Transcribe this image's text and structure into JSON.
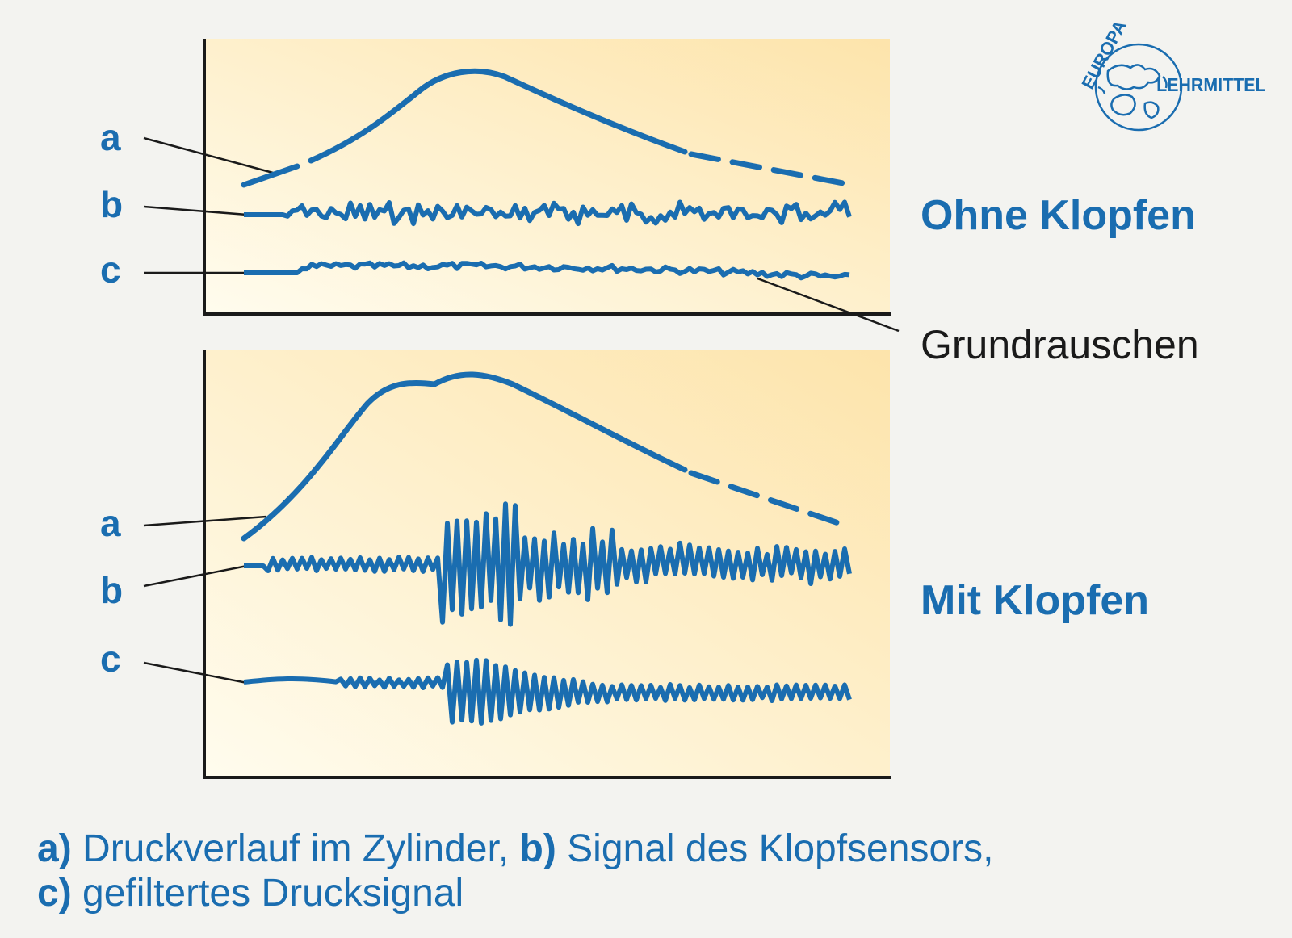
{
  "colors": {
    "accent": "#1a6db0",
    "panel_light": "#fffbe9",
    "panel_warm": "#fde7b3",
    "axis": "#1a1a1a",
    "page_bg": "#f3f3f0"
  },
  "logo": {
    "icon": "globe-icon",
    "line1": "EUROPA",
    "line2": "LEHRMITTEL"
  },
  "top_panel": {
    "side_label": "Ohne Klopfen",
    "trace_labels": [
      "a",
      "b",
      "c"
    ]
  },
  "bottom_panel": {
    "side_label": "Mit Klopfen",
    "trace_labels": [
      "a",
      "b",
      "c"
    ]
  },
  "annotation": {
    "label": "Grundrauschen"
  },
  "caption": {
    "line1": [
      {
        "text": "a)",
        "bold": true
      },
      {
        "text": " Druckverlauf im Zylinder, ",
        "bold": false
      },
      {
        "text": "b)",
        "bold": true
      },
      {
        "text": " Signal des Klopfsensors,",
        "bold": false
      }
    ],
    "line2": [
      {
        "text": "c)",
        "bold": true
      },
      {
        "text": " gefiltertes Drucksignal",
        "bold": false
      }
    ]
  }
}
